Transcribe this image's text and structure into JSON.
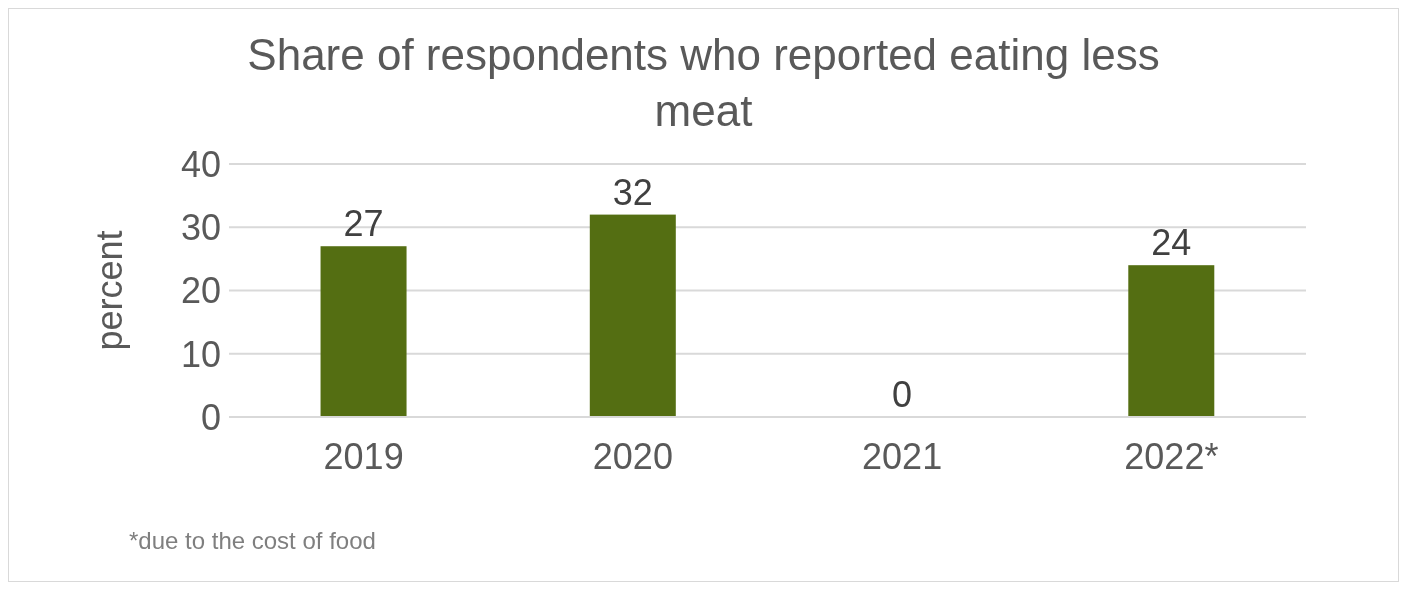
{
  "chart_data": {
    "type": "bar",
    "title": "Share of respondents who reported eating less meat",
    "ylabel": "percent",
    "categories": [
      "2019",
      "2020",
      "2021",
      "2022*"
    ],
    "values": [
      27,
      32,
      0,
      24
    ],
    "color": "#546e12",
    "ylim": [
      0,
      40
    ],
    "yticks": [
      0,
      10,
      20,
      30,
      40
    ],
    "grid": "y",
    "data_labels": true,
    "annotations": [
      "*due to the cost of food"
    ]
  }
}
